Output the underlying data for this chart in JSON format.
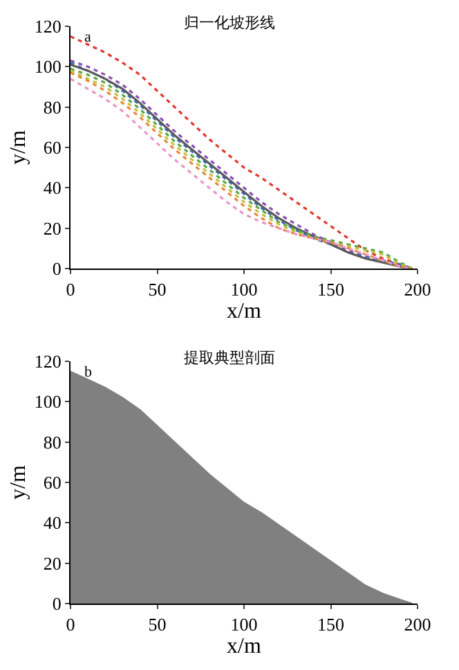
{
  "chart_data": [
    {
      "type": "line",
      "title": "归一化坡形线",
      "xlabel": "x/m",
      "ylabel": "y/m",
      "annotations": [
        "a"
      ],
      "x": [
        0,
        10,
        20,
        30,
        40,
        50,
        60,
        70,
        80,
        90,
        100,
        110,
        120,
        130,
        140,
        150,
        160,
        170,
        180,
        190,
        197
      ],
      "series": [
        {
          "color": "#e0382c",
          "line_style": "dotted",
          "values": [
            115,
            111,
            107,
            102,
            96,
            88,
            80,
            72,
            64,
            57,
            50,
            45,
            39,
            33,
            27,
            21,
            15,
            9,
            5,
            2,
            0
          ]
        },
        {
          "color": "#8a4fb8",
          "line_style": "dotted",
          "values": [
            103,
            100,
            96,
            91,
            84,
            76,
            68,
            61,
            54,
            47,
            40,
            33,
            27,
            22,
            17,
            13,
            9,
            6,
            4,
            2,
            0
          ]
        },
        {
          "color": "#3c6fc0",
          "line_style": "dotted",
          "values": [
            102,
            98,
            94,
            88,
            81,
            73,
            65,
            58,
            51,
            44,
            37,
            30,
            24,
            19,
            15,
            12,
            8,
            6,
            4,
            2,
            0
          ]
        },
        {
          "color": "#5a5a5a",
          "line_style": "solid",
          "values": [
            101,
            98,
            94,
            89,
            82,
            74,
            66,
            59,
            52,
            45,
            38,
            31,
            25,
            20,
            16,
            12,
            8,
            5,
            3,
            1,
            0
          ]
        },
        {
          "color": "#5aa84a",
          "line_style": "dotted",
          "values": [
            99,
            96,
            92,
            86,
            79,
            71,
            63,
            56,
            49,
            42,
            35,
            29,
            23,
            19,
            16,
            14,
            12,
            10,
            8,
            3,
            0
          ]
        },
        {
          "color": "#c8c040",
          "line_style": "dotted",
          "values": [
            98,
            94,
            90,
            84,
            77,
            69,
            61,
            54,
            47,
            40,
            33,
            27,
            22,
            18,
            15,
            13,
            11,
            9,
            7,
            2,
            0
          ]
        },
        {
          "color": "#e8883a",
          "line_style": "dotted",
          "values": [
            97,
            93,
            88,
            82,
            75,
            67,
            59,
            52,
            45,
            38,
            31,
            25,
            20,
            17,
            15,
            13,
            10,
            7,
            4,
            1,
            0
          ]
        },
        {
          "color": "#e896c8",
          "line_style": "dotted",
          "values": [
            94,
            89,
            84,
            78,
            70,
            62,
            54,
            47,
            40,
            33,
            27,
            23,
            20,
            17,
            15,
            13,
            10,
            7,
            4,
            1,
            0
          ]
        }
      ],
      "xlim": [
        0,
        200
      ],
      "xticks": [
        0,
        50,
        100,
        150,
        200
      ],
      "ylim": [
        0,
        120
      ],
      "yticks": [
        0,
        20,
        40,
        60,
        80,
        100,
        120
      ],
      "grid": false
    },
    {
      "type": "area",
      "title": "提取典型剖面",
      "xlabel": "x/m",
      "ylabel": "y/m",
      "annotations": [
        "b"
      ],
      "x": [
        0,
        10,
        20,
        30,
        40,
        50,
        60,
        70,
        80,
        90,
        100,
        110,
        120,
        130,
        140,
        150,
        160,
        170,
        180,
        190,
        197
      ],
      "series": [
        {
          "color": "#808080",
          "values": [
            115,
            111,
            107,
            102,
            96,
            88,
            80,
            72,
            64,
            57,
            50,
            45,
            39,
            33,
            27,
            21,
            15,
            9,
            5,
            2,
            0
          ]
        }
      ],
      "xlim": [
        0,
        200
      ],
      "xticks": [
        0,
        50,
        100,
        150,
        200
      ],
      "ylim": [
        0,
        120
      ],
      "yticks": [
        0,
        20,
        40,
        60,
        80,
        100,
        120
      ],
      "grid": false
    }
  ]
}
